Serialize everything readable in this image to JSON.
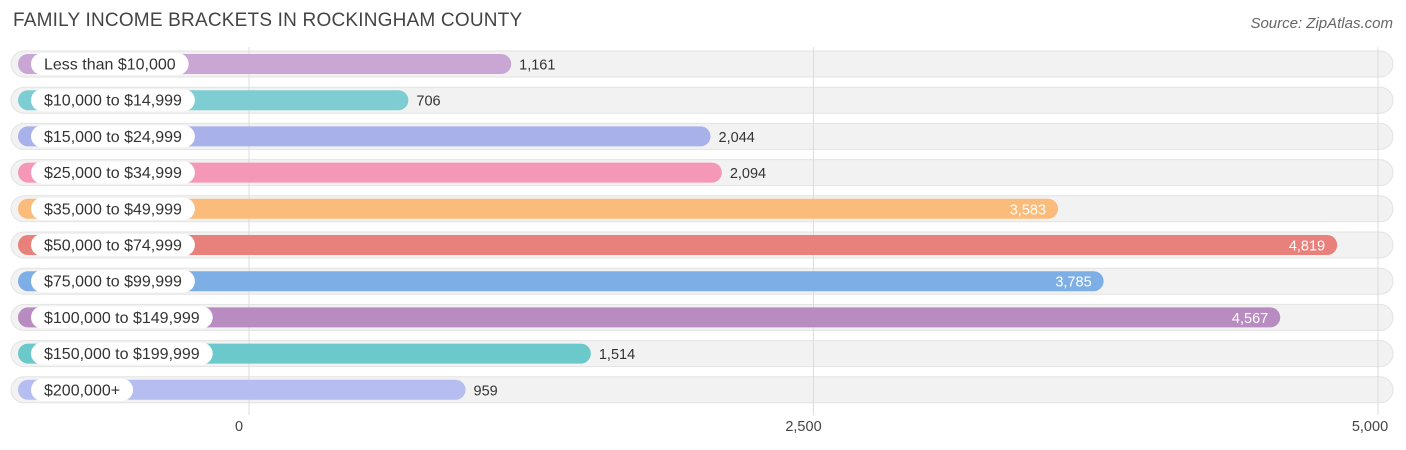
{
  "header": {
    "title": "FAMILY INCOME BRACKETS IN ROCKINGHAM COUNTY",
    "source": "Source: ZipAtlas.com"
  },
  "chart_data": {
    "type": "bar",
    "orientation": "horizontal",
    "title": "FAMILY INCOME BRACKETS IN ROCKINGHAM COUNTY",
    "xlabel": "",
    "ylabel": "",
    "xlim": [
      0,
      5000
    ],
    "x_ticks": [
      0,
      2500,
      5000
    ],
    "x_tick_labels": [
      "0",
      "2,500",
      "5,000"
    ],
    "grid": true,
    "categories": [
      "Less than $10,000",
      "$10,000 to $14,999",
      "$15,000 to $24,999",
      "$25,000 to $34,999",
      "$35,000 to $49,999",
      "$50,000 to $74,999",
      "$75,000 to $99,999",
      "$100,000 to $149,999",
      "$150,000 to $199,999",
      "$200,000+"
    ],
    "values": [
      1161,
      706,
      2044,
      2094,
      3583,
      4819,
      3785,
      4567,
      1514,
      959
    ],
    "value_labels": [
      "1,161",
      "706",
      "2,044",
      "2,094",
      "3,583",
      "4,819",
      "3,785",
      "4,567",
      "1,514",
      "959"
    ],
    "colors": [
      "#c9a6d3",
      "#7dcdd3",
      "#a9b1ea",
      "#f597b7",
      "#fbbb7a",
      "#e8807c",
      "#7eaee6",
      "#b88bc1",
      "#6cc9cb",
      "#b6bdf0"
    ]
  }
}
